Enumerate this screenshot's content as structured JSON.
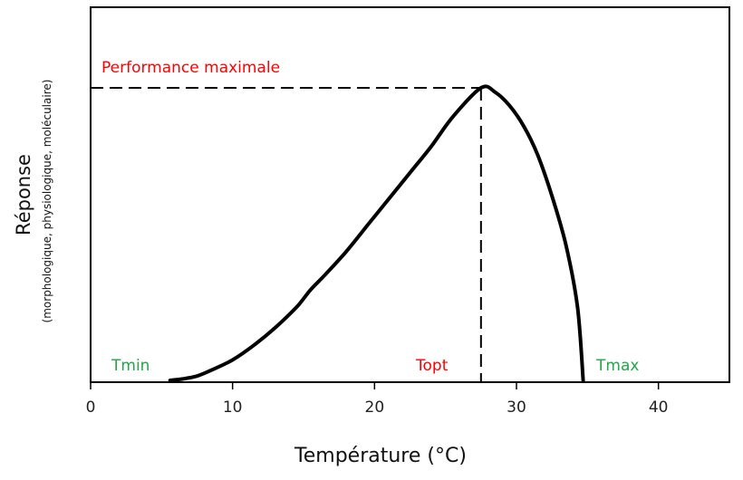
{
  "chart_data": {
    "type": "line",
    "xlabel": "Température (°C)",
    "ylabel": "Réponse",
    "ylabel_sub": "(morphologique, physiologique, moléculaire)",
    "xlim": [
      0,
      45
    ],
    "ylim": [
      0,
      1
    ],
    "xticks": [
      0,
      10,
      20,
      30,
      40
    ],
    "grid": false,
    "series": [
      {
        "color": "#000000",
        "points": [
          [
            5.6,
            0.0
          ],
          [
            6.5,
            0.005
          ],
          [
            7.5,
            0.015
          ],
          [
            8.5,
            0.035
          ],
          [
            10.0,
            0.07
          ],
          [
            11.5,
            0.12
          ],
          [
            13.0,
            0.18
          ],
          [
            14.5,
            0.25
          ],
          [
            15.5,
            0.31
          ],
          [
            16.5,
            0.36
          ],
          [
            18.0,
            0.44
          ],
          [
            19.5,
            0.53
          ],
          [
            21.0,
            0.62
          ],
          [
            22.5,
            0.71
          ],
          [
            24.0,
            0.8
          ],
          [
            25.5,
            0.9
          ],
          [
            27.5,
            1.0
          ],
          [
            28.5,
            0.985
          ],
          [
            29.5,
            0.94
          ],
          [
            30.5,
            0.87
          ],
          [
            31.5,
            0.77
          ],
          [
            32.5,
            0.63
          ],
          [
            33.5,
            0.46
          ],
          [
            34.3,
            0.25
          ],
          [
            34.7,
            0.0
          ]
        ]
      }
    ],
    "reference_lines": {
      "peak_x": 27.5,
      "peak_y": 1.0
    },
    "annotations": [
      {
        "id": "perf-max",
        "text": "Performance maximale",
        "color": "#ff0000"
      },
      {
        "id": "tmin",
        "text": "Tmin",
        "color": "#22a646"
      },
      {
        "id": "topt",
        "text": "Topt",
        "color": "#ff0000"
      },
      {
        "id": "tmax",
        "text": "Tmax",
        "color": "#22a646"
      }
    ]
  }
}
